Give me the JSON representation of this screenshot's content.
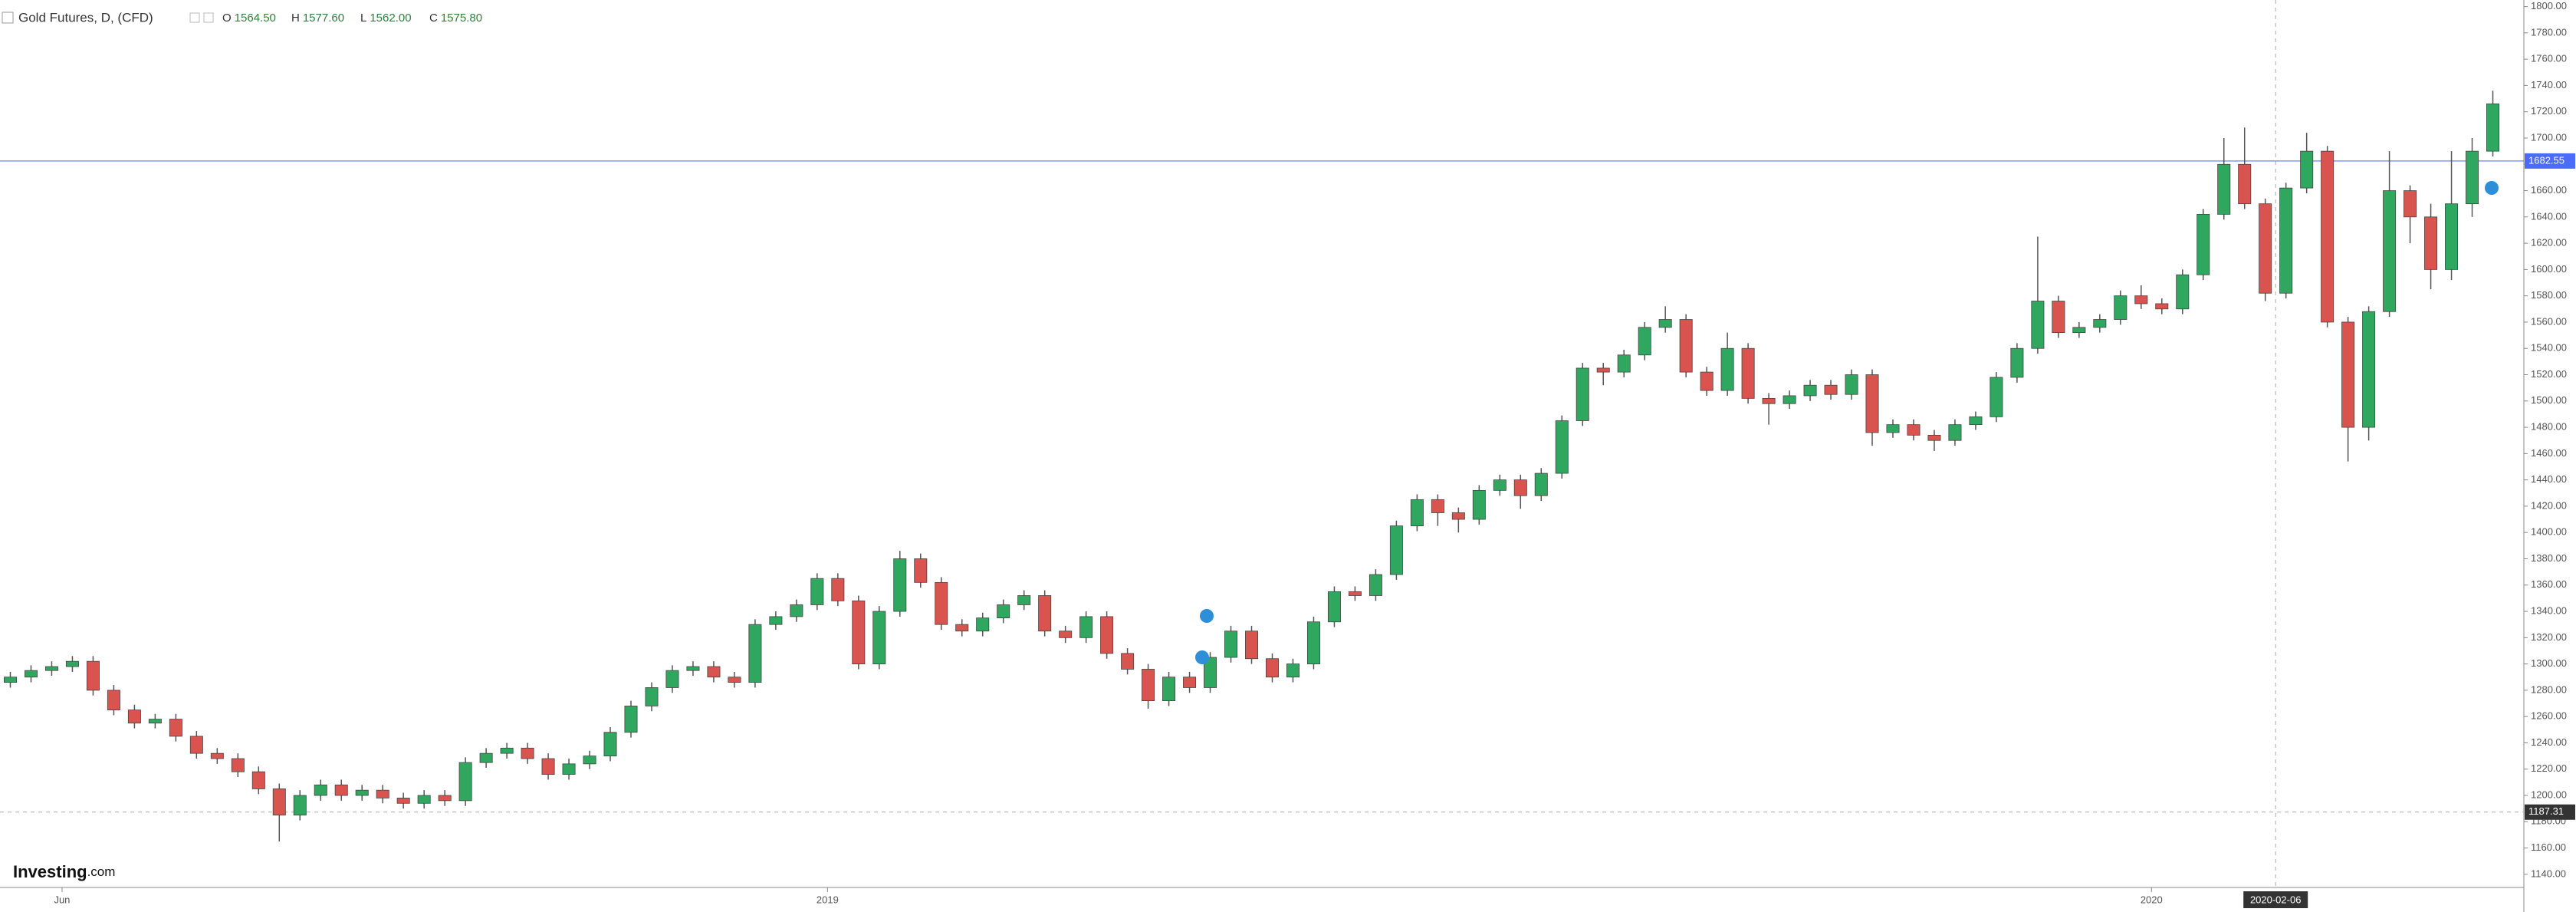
{
  "chart_data": {
    "type": "candlestick",
    "title": "Gold Futures, D, (CFD)",
    "ohlc_legend": [
      {
        "key": "O",
        "value": 1564.5,
        "label": "1564.50"
      },
      {
        "key": "H",
        "value": 1577.6,
        "label": "1577.60"
      },
      {
        "key": "L",
        "value": 1562,
        "label": "1562.00"
      },
      {
        "key": "C",
        "value": 1575.8,
        "label": "1575.80"
      }
    ],
    "brand": "Investing",
    "brand_suffix": ".com",
    "up_color": "#2fa75f",
    "down_color": "#d9534f",
    "open": [
      1286,
      1290,
      1295,
      1298,
      1302,
      1280,
      1265,
      1255,
      1258,
      1245,
      1232,
      1228,
      1218,
      1205,
      1185,
      1200,
      1208,
      1200,
      1204,
      1198,
      1194,
      1200,
      1196,
      1225,
      1232,
      1236,
      1228,
      1216,
      1224,
      1230,
      1248,
      1268,
      1282,
      1295,
      1298,
      1290,
      1286,
      1330,
      1336,
      1345,
      1365,
      1348,
      1300,
      1340,
      1380,
      1362,
      1330,
      1325,
      1335,
      1345,
      1352,
      1325,
      1320,
      1336,
      1308,
      1296,
      1272,
      1290,
      1282,
      1305,
      1325,
      1304,
      1290,
      1300,
      1332,
      1355,
      1352,
      1368,
      1405,
      1425,
      1415,
      1410,
      1432,
      1440,
      1428,
      1445,
      1485,
      1525,
      1522,
      1535,
      1556,
      1562,
      1522,
      1508,
      1540,
      1502,
      1498,
      1504,
      1512,
      1505,
      1520,
      1476,
      1482,
      1474,
      1470,
      1482,
      1488,
      1518,
      1540,
      1576,
      1552,
      1556,
      1562,
      1580,
      1574,
      1570,
      1596,
      1642,
      1680,
      1650,
      1582,
      1662,
      1690,
      1560,
      1480,
      1568,
      1660,
      1640,
      1600,
      1650,
      1690
    ],
    "high": [
      1294,
      1299,
      1302,
      1306,
      1306,
      1284,
      1269,
      1262,
      1262,
      1249,
      1236,
      1232,
      1222,
      1209,
      1204,
      1212,
      1212,
      1208,
      1208,
      1202,
      1204,
      1204,
      1229,
      1236,
      1240,
      1240,
      1232,
      1228,
      1234,
      1252,
      1272,
      1286,
      1299,
      1302,
      1302,
      1294,
      1334,
      1340,
      1349,
      1369,
      1369,
      1352,
      1344,
      1386,
      1384,
      1366,
      1334,
      1339,
      1349,
      1356,
      1356,
      1329,
      1340,
      1340,
      1312,
      1300,
      1294,
      1294,
      1309,
      1329,
      1329,
      1308,
      1304,
      1336,
      1359,
      1359,
      1372,
      1409,
      1429,
      1429,
      1419,
      1436,
      1444,
      1444,
      1449,
      1489,
      1529,
      1529,
      1539,
      1560,
      1572,
      1566,
      1526,
      1552,
      1544,
      1506,
      1508,
      1516,
      1516,
      1524,
      1524,
      1486,
      1486,
      1478,
      1486,
      1492,
      1522,
      1544,
      1625,
      1580,
      1560,
      1566,
      1584,
      1588,
      1578,
      1600,
      1646,
      1700,
      1708,
      1654,
      1666,
      1704,
      1694,
      1564,
      1572,
      1690,
      1664,
      1650,
      1690,
      1700,
      1736
    ],
    "low": [
      1282,
      1286,
      1291,
      1294,
      1276,
      1261,
      1251,
      1251,
      1241,
      1228,
      1224,
      1214,
      1201,
      1165,
      1181,
      1196,
      1196,
      1196,
      1194,
      1190,
      1190,
      1192,
      1192,
      1221,
      1228,
      1224,
      1212,
      1212,
      1220,
      1226,
      1244,
      1264,
      1278,
      1291,
      1286,
      1282,
      1282,
      1326,
      1332,
      1341,
      1344,
      1296,
      1296,
      1336,
      1358,
      1326,
      1321,
      1321,
      1331,
      1341,
      1321,
      1316,
      1316,
      1304,
      1292,
      1266,
      1268,
      1278,
      1278,
      1301,
      1300,
      1286,
      1286,
      1296,
      1328,
      1348,
      1348,
      1364,
      1401,
      1405,
      1400,
      1406,
      1428,
      1418,
      1424,
      1441,
      1481,
      1512,
      1518,
      1531,
      1552,
      1518,
      1504,
      1504,
      1498,
      1482,
      1494,
      1500,
      1501,
      1501,
      1466,
      1472,
      1470,
      1462,
      1466,
      1478,
      1484,
      1514,
      1536,
      1548,
      1548,
      1552,
      1558,
      1570,
      1566,
      1566,
      1592,
      1638,
      1646,
      1576,
      1578,
      1658,
      1556,
      1454,
      1470,
      1564,
      1620,
      1585,
      1592,
      1640,
      1686
    ],
    "close": [
      1290,
      1295,
      1298,
      1302,
      1280,
      1265,
      1255,
      1258,
      1245,
      1232,
      1228,
      1218,
      1205,
      1185,
      1200,
      1208,
      1200,
      1204,
      1198,
      1194,
      1200,
      1196,
      1225,
      1232,
      1236,
      1228,
      1216,
      1224,
      1230,
      1248,
      1268,
      1282,
      1295,
      1298,
      1290,
      1286,
      1330,
      1336,
      1345,
      1365,
      1348,
      1300,
      1340,
      1380,
      1362,
      1330,
      1325,
      1335,
      1345,
      1352,
      1325,
      1320,
      1336,
      1308,
      1296,
      1272,
      1290,
      1282,
      1305,
      1325,
      1304,
      1290,
      1300,
      1332,
      1355,
      1352,
      1368,
      1405,
      1425,
      1415,
      1410,
      1432,
      1440,
      1428,
      1445,
      1485,
      1525,
      1522,
      1535,
      1556,
      1562,
      1522,
      1508,
      1540,
      1502,
      1498,
      1504,
      1512,
      1505,
      1520,
      1476,
      1482,
      1474,
      1470,
      1482,
      1488,
      1518,
      1540,
      1576,
      1552,
      1556,
      1562,
      1580,
      1574,
      1570,
      1596,
      1642,
      1680,
      1650,
      1582,
      1662,
      1690,
      1560,
      1480,
      1568,
      1660,
      1640,
      1600,
      1650,
      1690,
      1726
    ],
    "xlim": [
      0,
      122
    ],
    "xticks": [
      {
        "value": 3,
        "label": "Jun"
      },
      {
        "value": 40,
        "label": "2019"
      },
      {
        "value": 104,
        "label": "2020"
      }
    ],
    "ylim": [
      1130,
      1805
    ],
    "yticks": [
      {
        "value": 1140,
        "label": "1140.00"
      },
      {
        "value": 1160,
        "label": "1160.00"
      },
      {
        "value": 1180,
        "label": "1180.00"
      },
      {
        "value": 1200,
        "label": "1200.00"
      },
      {
        "value": 1220,
        "label": "1220.00"
      },
      {
        "value": 1240,
        "label": "1240.00"
      },
      {
        "value": 1260,
        "label": "1260.00"
      },
      {
        "value": 1280,
        "label": "1280.00"
      },
      {
        "value": 1300,
        "label": "1300.00"
      },
      {
        "value": 1320,
        "label": "1320.00"
      },
      {
        "value": 1340,
        "label": "1340.00"
      },
      {
        "value": 1360,
        "label": "1360.00"
      },
      {
        "value": 1380,
        "label": "1380.00"
      },
      {
        "value": 1400,
        "label": "1400.00"
      },
      {
        "value": 1420,
        "label": "1420.00"
      },
      {
        "value": 1440,
        "label": "1440.00"
      },
      {
        "value": 1460,
        "label": "1460.00"
      },
      {
        "value": 1480,
        "label": "1480.00"
      },
      {
        "value": 1500,
        "label": "1500.00"
      },
      {
        "value": 1520,
        "label": "1520.00"
      },
      {
        "value": 1540,
        "label": "1540.00"
      },
      {
        "value": 1560,
        "label": "1560.00"
      },
      {
        "value": 1580,
        "label": "1580.00"
      },
      {
        "value": 1600,
        "label": "1600.00"
      },
      {
        "value": 1620,
        "label": "1620.00"
      },
      {
        "value": 1640,
        "label": "1640.00"
      },
      {
        "value": 1660,
        "label": "1660.00"
      },
      {
        "value": 1680,
        "label": "1680.00"
      },
      {
        "value": 1700,
        "label": "1700.00"
      },
      {
        "value": 1720,
        "label": "1720.00"
      },
      {
        "value": 1740,
        "label": "1740.00"
      },
      {
        "value": 1760,
        "label": "1760.00"
      },
      {
        "value": 1780,
        "label": "1780.00"
      },
      {
        "value": 1800,
        "label": "1800.00"
      }
    ],
    "price_line": {
      "value": 1682.55,
      "color": "#4a6cf7"
    },
    "crosshair": {
      "x": 110,
      "x_label": "2020-02-06",
      "y": 1187.31
    }
  }
}
